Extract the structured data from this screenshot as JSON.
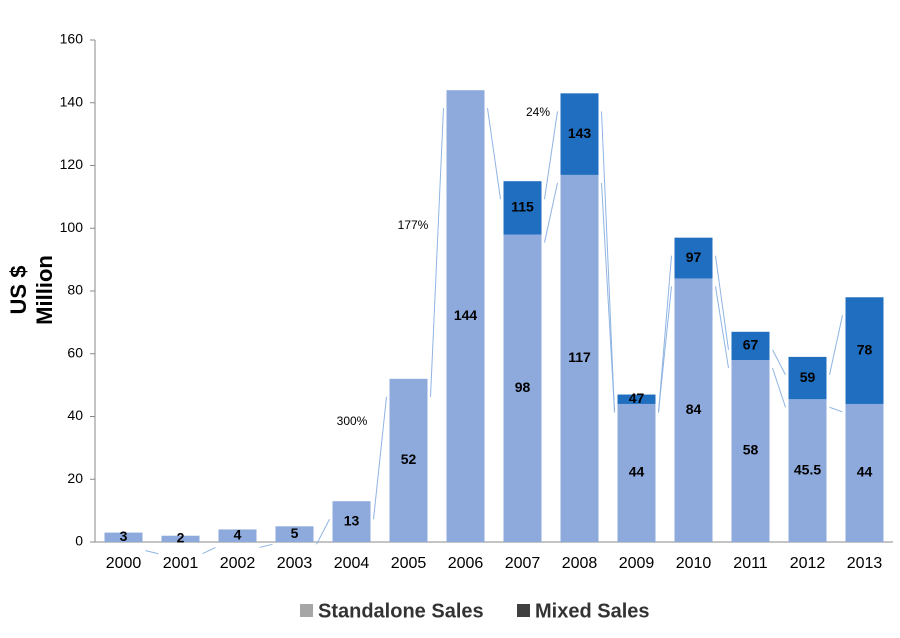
{
  "chart_data": {
    "type": "stacked_bar",
    "ylabel": [
      "US $",
      "Million"
    ],
    "categories": [
      "2000",
      "2001",
      "2002",
      "2003",
      "2004",
      "2005",
      "2006",
      "2007",
      "2008",
      "2009",
      "2010",
      "2011",
      "2012",
      "2013"
    ],
    "series": [
      {
        "name": "Standalone Sales",
        "color": "#8eaadc",
        "legend_color": "#a6a6a6",
        "values": [
          3,
          2,
          4,
          5,
          13,
          52,
          144,
          98,
          117,
          44,
          84,
          58,
          45.5,
          44
        ]
      },
      {
        "name": "Mixed Sales",
        "color": "#1f6ebf",
        "legend_color": "#404040",
        "values": [
          null,
          null,
          null,
          null,
          null,
          null,
          null,
          17,
          26,
          3,
          13,
          9,
          13.5,
          34
        ]
      }
    ],
    "totals": [
      null,
      null,
      null,
      null,
      null,
      null,
      null,
      115,
      143,
      47,
      97,
      67,
      59,
      78
    ],
    "annotations": [
      "300%",
      "177%",
      "24%"
    ],
    "ylim": [
      0,
      160
    ],
    "yticks": [
      0,
      20,
      40,
      60,
      80,
      100,
      120,
      140,
      160
    ]
  }
}
